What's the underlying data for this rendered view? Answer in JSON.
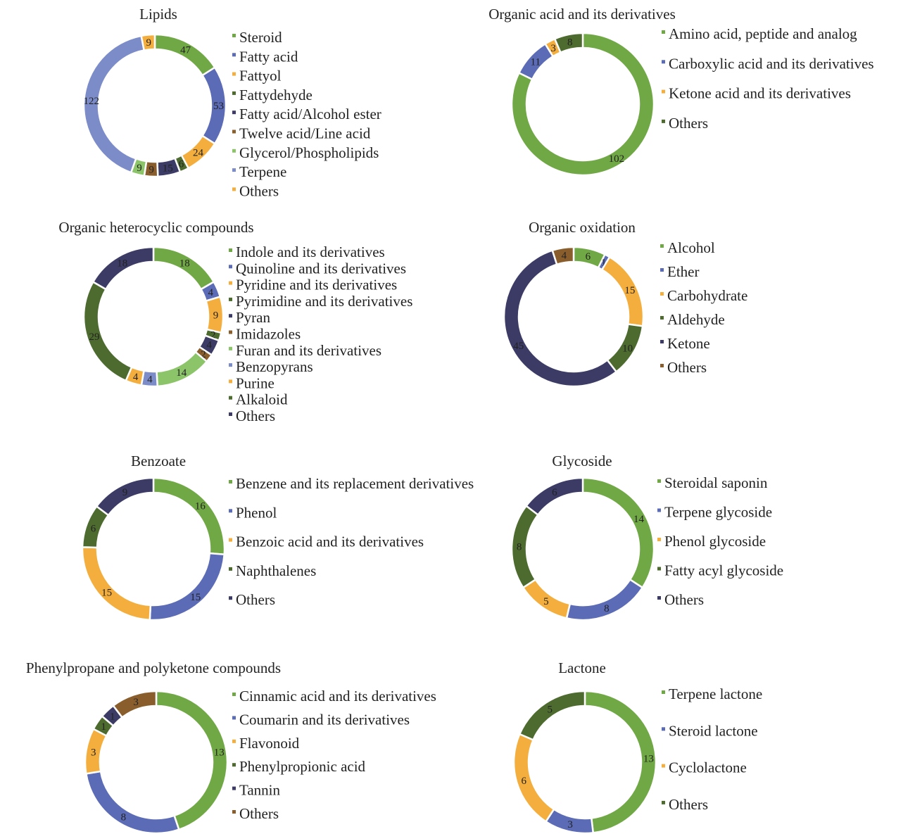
{
  "colors": {
    "green": "#70a845",
    "blue": "#5b6bb5",
    "orange": "#f4ae3d",
    "dkgreen": "#4d6b2f",
    "navy": "#3b3b66",
    "brown": "#8a5e2c",
    "ltgreen": "#8cc46a",
    "ltblue": "#7b8cc9"
  },
  "chart_data": [
    {
      "type": "pie",
      "title": "Lipids",
      "categories": [
        "Steroid",
        "Fatty acid",
        "Fattyol",
        "Fattydehyde",
        "Fatty acid/Alcohol ester",
        "Twelve acid/Line acid",
        "Glycerol/Phospholipids",
        "Terpene",
        "Others"
      ],
      "values": [
        47,
        53,
        24,
        6,
        15,
        9,
        9,
        122,
        9
      ],
      "colors": [
        "#70a845",
        "#5b6bb5",
        "#f4ae3d",
        "#4d6b2f",
        "#3b3b66",
        "#8a5e2c",
        "#8cc46a",
        "#7b8cc9",
        "#f4ae3d"
      ],
      "legend": "right"
    },
    {
      "type": "pie",
      "title": "Organic acid and its derivatives",
      "categories": [
        "Amino acid, peptide and analog",
        "Carboxylic acid and its derivatives",
        "Ketone acid and its derivatives",
        "Others"
      ],
      "values": [
        102,
        11,
        3,
        8
      ],
      "colors": [
        "#70a845",
        "#5b6bb5",
        "#f4ae3d",
        "#4d6b2f"
      ],
      "legend": "right"
    },
    {
      "type": "pie",
      "title": "Organic heterocyclic compounds",
      "categories": [
        "Indole and its derivatives",
        "Quinoline and its derivatives",
        "Pyridine and its derivatives",
        "Pyrimidine and its derivatives",
        "Pyran",
        "Imidazoles",
        "Furan and its derivatives",
        "Benzopyrans",
        "Purine",
        "Alkaloid",
        "Others"
      ],
      "values": [
        18,
        4,
        9,
        2,
        4,
        2,
        14,
        4,
        4,
        29,
        18
      ],
      "colors": [
        "#70a845",
        "#5b6bb5",
        "#f4ae3d",
        "#4d6b2f",
        "#3b3b66",
        "#8a5e2c",
        "#8cc46a",
        "#7b8cc9",
        "#f4ae3d",
        "#4d6b2f",
        "#3b3b66"
      ],
      "legend": "right"
    },
    {
      "type": "pie",
      "title": "Organic oxidation",
      "categories": [
        "Alcohol",
        "Ether",
        "Carbohydrate",
        "Aldehyde",
        "Ketone",
        "Others"
      ],
      "values": [
        6,
        1,
        15,
        10,
        45,
        4
      ],
      "colors": [
        "#70a845",
        "#5b6bb5",
        "#f4ae3d",
        "#4d6b2f",
        "#3b3b66",
        "#8a5e2c"
      ],
      "legend": "right"
    },
    {
      "type": "pie",
      "title": "Benzoate",
      "categories": [
        "Benzene and its replacement derivatives",
        "Phenol",
        "Benzoic acid and its derivatives",
        "Naphthalenes",
        "Others"
      ],
      "values": [
        16,
        15,
        15,
        6,
        9
      ],
      "colors": [
        "#70a845",
        "#5b6bb5",
        "#f4ae3d",
        "#4d6b2f",
        "#3b3b66"
      ],
      "legend": "right"
    },
    {
      "type": "pie",
      "title": "Glycoside",
      "categories": [
        "Steroidal saponin",
        "Terpene glycoside",
        "Phenol glycoside",
        "Fatty acyl glycoside",
        "Others"
      ],
      "values": [
        14,
        8,
        5,
        8,
        6
      ],
      "colors": [
        "#70a845",
        "#5b6bb5",
        "#f4ae3d",
        "#4d6b2f",
        "#3b3b66"
      ],
      "legend": "right"
    },
    {
      "type": "pie",
      "title": "Phenylpropane and polyketone compounds",
      "categories": [
        "Cinnamic acid and its derivatives",
        "Coumarin and its derivatives",
        "Flavonoid",
        "Phenylpropionic acid",
        "Tannin",
        "Others"
      ],
      "values": [
        13,
        8,
        3,
        1,
        1,
        3
      ],
      "colors": [
        "#70a845",
        "#5b6bb5",
        "#f4ae3d",
        "#4d6b2f",
        "#3b3b66",
        "#8a5e2c"
      ],
      "legend": "right"
    },
    {
      "type": "pie",
      "title": "Lactone",
      "categories": [
        "Terpene lactone",
        "Steroid lactone",
        "Cyclolactone",
        "Others"
      ],
      "values": [
        13,
        3,
        6,
        5
      ],
      "colors": [
        "#70a845",
        "#5b6bb5",
        "#f4ae3d",
        "#4d6b2f"
      ],
      "legend": "right"
    }
  ]
}
